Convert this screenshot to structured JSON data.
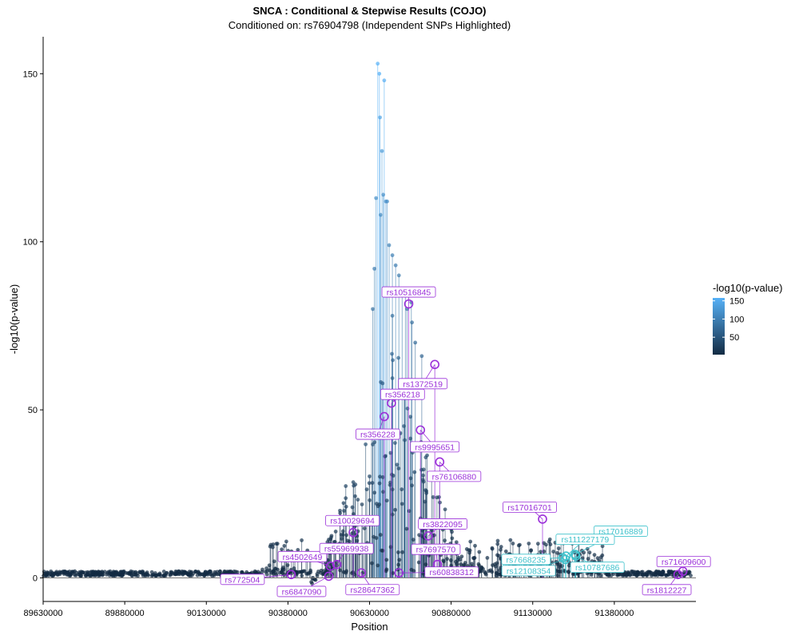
{
  "chart_data": {
    "type": "scatter",
    "title": "SNCA : Conditional & Stepwise Results (COJO)",
    "subtitle": "Conditioned on: rs76904798 (Independent SNPs Highlighted)",
    "xlabel": "Position",
    "ylabel": "-log10(p-value)",
    "xlim": [
      89630000,
      91630000
    ],
    "ylim": [
      -7,
      161
    ],
    "x_ticks": [
      89630000,
      89880000,
      90130000,
      90380000,
      90630000,
      90880000,
      91130000,
      91380000
    ],
    "y_ticks": [
      0,
      50,
      100,
      150
    ],
    "grid": false,
    "baseline": 0,
    "legend": {
      "title": "-log10(p-value)",
      "position": "right",
      "ticks": [
        150,
        100,
        50
      ],
      "colors": {
        "low": "#132b43",
        "high": "#56b1f7"
      }
    },
    "independent_snp_color": "#9b30d9",
    "cojo_snp_color": "#3fc2cc",
    "highlighted_snps": [
      {
        "label": "rs10516845",
        "x": 90750000,
        "y": 81.5,
        "group": "independent"
      },
      {
        "label": "rs1372519",
        "x": 90830000,
        "y": 63.5,
        "group": "independent"
      },
      {
        "label": "rs356218",
        "x": 90697000,
        "y": 52.0,
        "group": "independent"
      },
      {
        "label": "rs356228",
        "x": 90675000,
        "y": 48.0,
        "group": "independent"
      },
      {
        "label": "rs9995651",
        "x": 90786000,
        "y": 44.0,
        "group": "independent"
      },
      {
        "label": "rs76106880",
        "x": 90845000,
        "y": 34.5,
        "group": "independent"
      },
      {
        "label": "rs10029694",
        "x": 90580000,
        "y": 13.5,
        "group": "independent"
      },
      {
        "label": "rs3822095",
        "x": 90810000,
        "y": 12.5,
        "group": "independent"
      },
      {
        "label": "rs17016701",
        "x": 91160000,
        "y": 17.5,
        "group": "independent"
      },
      {
        "label": "rs4502649",
        "x": 90510000,
        "y": 3.5,
        "group": "independent"
      },
      {
        "label": "rs55969938",
        "x": 90530000,
        "y": 4.0,
        "group": "independent"
      },
      {
        "label": "rs7697570",
        "x": 90838000,
        "y": 4.0,
        "group": "independent"
      },
      {
        "label": "rs772504",
        "x": 90390000,
        "y": 1.0,
        "group": "independent"
      },
      {
        "label": "rs6847090",
        "x": 90505000,
        "y": 0.5,
        "group": "independent"
      },
      {
        "label": "rs28647362",
        "x": 90605000,
        "y": 1.5,
        "group": "independent"
      },
      {
        "label": "rs60838312",
        "x": 90720000,
        "y": 1.5,
        "group": "independent"
      },
      {
        "label": "rs71609600",
        "x": 91590000,
        "y": 2.0,
        "group": "independent"
      },
      {
        "label": "rs1812227",
        "x": 91575000,
        "y": 1.0,
        "group": "independent"
      },
      {
        "label": "rs17016889",
        "x": 91260000,
        "y": 7.0,
        "group": "cojo"
      },
      {
        "label": "rs111227179",
        "x": 91232000,
        "y": 6.5,
        "group": "cojo"
      },
      {
        "label": "rs7668235",
        "x": 91222000,
        "y": 6.0,
        "group": "cojo"
      },
      {
        "label": "rs12108354",
        "x": 91230000,
        "y": 5.5,
        "group": "cojo"
      },
      {
        "label": "rs10787686",
        "x": 91262000,
        "y": 6.5,
        "group": "cojo"
      }
    ]
  }
}
